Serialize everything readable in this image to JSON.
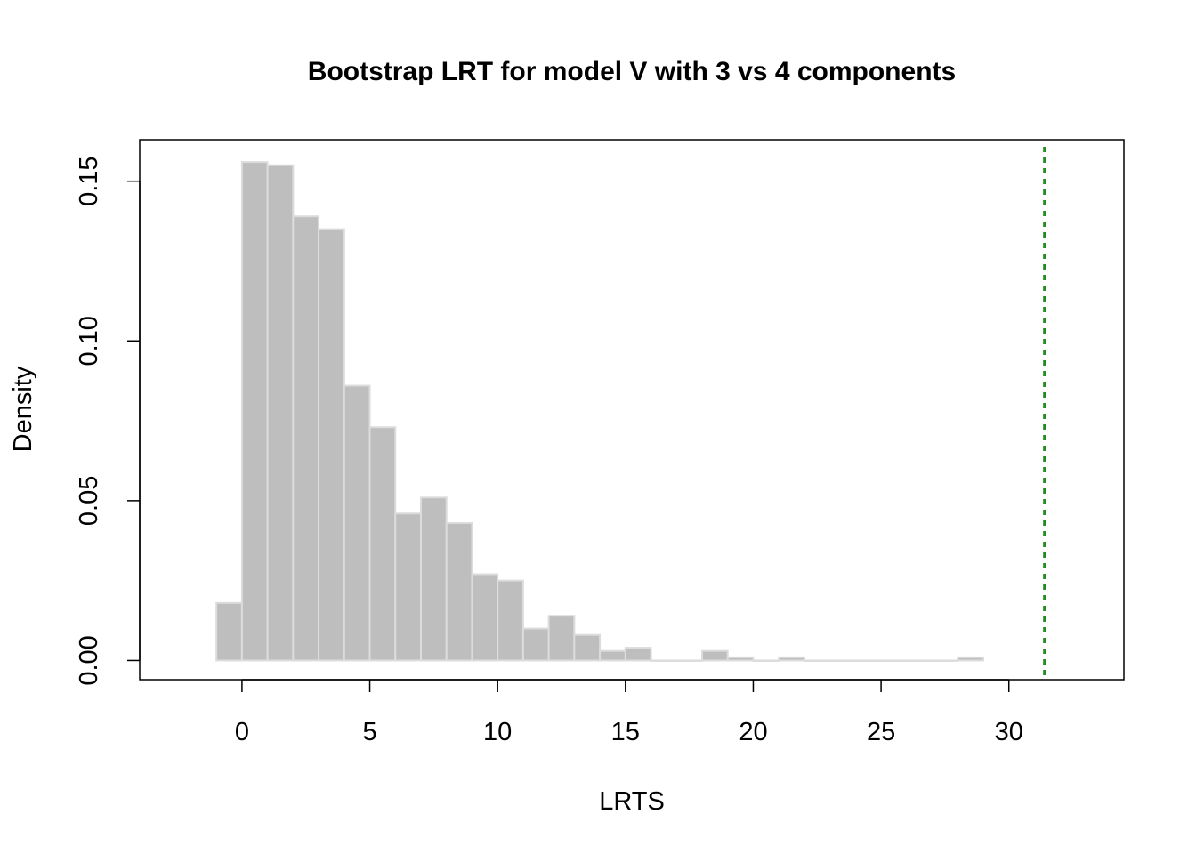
{
  "chart_data": {
    "type": "bar",
    "title": "Bootstrap LRT for model V with 3 vs 4 components",
    "xlabel": "LRTS",
    "ylabel": "Density",
    "xlim": [
      -4,
      34.5
    ],
    "ylim": [
      -0.006,
      0.163
    ],
    "x_ticks": [
      0,
      5,
      10,
      15,
      20,
      25,
      30
    ],
    "y_ticks": [
      0.0,
      0.05,
      0.1,
      0.15
    ],
    "x_tick_labels": [
      "0",
      "5",
      "10",
      "15",
      "20",
      "25",
      "30"
    ],
    "y_tick_labels": [
      "0.00",
      "0.05",
      "0.10",
      "0.15"
    ],
    "bin_edges": [
      -1,
      0,
      1,
      2,
      3,
      4,
      5,
      6,
      7,
      8,
      9,
      10,
      11,
      12,
      13,
      14,
      15,
      16,
      17,
      18,
      19,
      20,
      21,
      22,
      23,
      24,
      25,
      26,
      27,
      28,
      29
    ],
    "values": [
      0.018,
      0.156,
      0.155,
      0.139,
      0.135,
      0.086,
      0.073,
      0.046,
      0.051,
      0.043,
      0.027,
      0.025,
      0.01,
      0.014,
      0.008,
      0.003,
      0.004,
      0.0,
      0.0,
      0.003,
      0.001,
      0.0,
      0.001,
      0.0,
      0.0,
      0.0,
      0.0,
      0.0,
      0.0,
      0.001
    ],
    "observed_lrts": 31.4,
    "bar_color": "#bebebe",
    "bar_border_color": "#dcdcdc",
    "observed_line_color": "#228b22",
    "grid": false
  }
}
